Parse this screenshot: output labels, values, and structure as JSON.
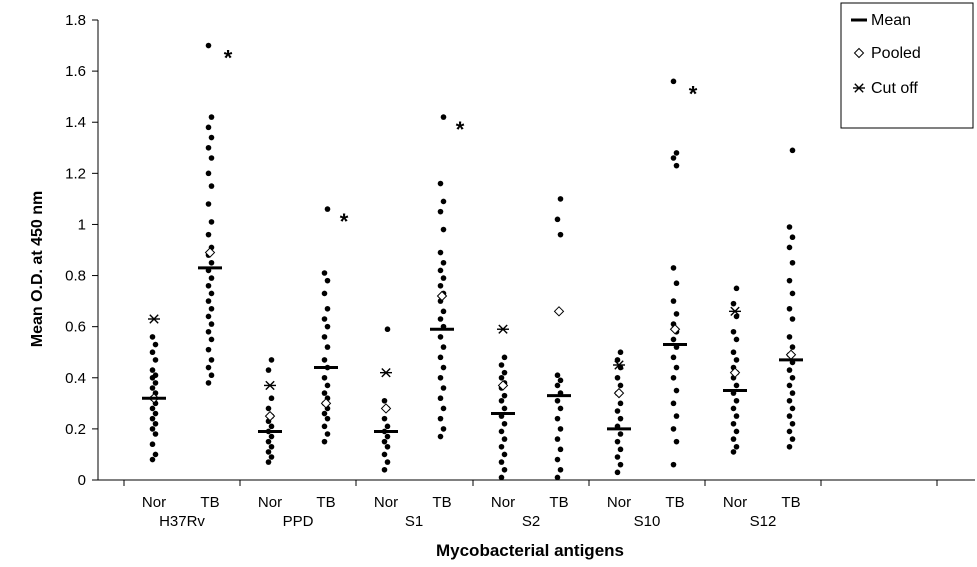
{
  "chart_data": {
    "type": "scatter",
    "title": "",
    "xlabel": "Mycobacterial antigens",
    "ylabel": "Mean O.D. at 450 nm",
    "ylim": [
      0,
      1.8
    ],
    "yticks": [
      "0",
      "0.2",
      "0.4",
      "0.6",
      "0.8",
      "1",
      "1.2",
      "1.4",
      "1.6",
      "1.8"
    ],
    "grid": false,
    "legend_position": "top-right",
    "legend": [
      {
        "symbol": "dash",
        "label": "Mean"
      },
      {
        "symbol": "diamond",
        "label": "Pooled"
      },
      {
        "symbol": "asterisk",
        "label": "Cut off"
      }
    ],
    "groups": [
      {
        "antigen": "H37Rv",
        "nor": {
          "label": "Nor",
          "mean": 0.32,
          "pooled": 0.32,
          "cutoff": 0.63,
          "values": [
            0.08,
            0.1,
            0.14,
            0.18,
            0.2,
            0.22,
            0.24,
            0.26,
            0.28,
            0.3,
            0.32,
            0.34,
            0.36,
            0.38,
            0.4,
            0.41,
            0.43,
            0.47,
            0.5,
            0.53,
            0.56
          ]
        },
        "tb": {
          "label": "TB",
          "mean": 0.83,
          "pooled": 0.89,
          "significant": true,
          "values": [
            0.38,
            0.41,
            0.44,
            0.47,
            0.51,
            0.55,
            0.58,
            0.61,
            0.64,
            0.67,
            0.7,
            0.73,
            0.76,
            0.79,
            0.82,
            0.85,
            0.88,
            0.91,
            0.96,
            1.01,
            1.08,
            1.15,
            1.2,
            1.26,
            1.3,
            1.34,
            1.38,
            1.42,
            1.7
          ]
        }
      },
      {
        "antigen": "PPD",
        "nor": {
          "label": "Nor",
          "mean": 0.19,
          "pooled": 0.25,
          "cutoff": 0.37,
          "values": [
            0.07,
            0.09,
            0.11,
            0.13,
            0.15,
            0.17,
            0.19,
            0.21,
            0.23,
            0.25,
            0.28,
            0.32,
            0.43,
            0.47
          ]
        },
        "tb": {
          "label": "TB",
          "mean": 0.44,
          "pooled": 0.3,
          "significant": true,
          "values": [
            0.15,
            0.18,
            0.21,
            0.24,
            0.26,
            0.28,
            0.3,
            0.32,
            0.34,
            0.37,
            0.4,
            0.44,
            0.47,
            0.52,
            0.56,
            0.6,
            0.63,
            0.67,
            0.73,
            0.78,
            0.81,
            1.06
          ]
        }
      },
      {
        "antigen": "S1",
        "nor": {
          "label": "Nor",
          "mean": 0.19,
          "pooled": 0.28,
          "cutoff": 0.42,
          "values": [
            0.04,
            0.07,
            0.1,
            0.13,
            0.15,
            0.17,
            0.19,
            0.21,
            0.24,
            0.28,
            0.31,
            0.59
          ]
        },
        "tb": {
          "label": "TB",
          "mean": 0.59,
          "pooled": 0.72,
          "significant": true,
          "values": [
            0.17,
            0.2,
            0.24,
            0.28,
            0.32,
            0.36,
            0.4,
            0.44,
            0.48,
            0.52,
            0.56,
            0.6,
            0.63,
            0.66,
            0.7,
            0.73,
            0.76,
            0.79,
            0.82,
            0.85,
            0.89,
            0.98,
            1.05,
            1.09,
            1.16,
            1.42
          ]
        }
      },
      {
        "antigen": "S2",
        "nor": {
          "label": "Nor",
          "mean": 0.26,
          "pooled": 0.37,
          "cutoff": 0.59,
          "values": [
            0.01,
            0.04,
            0.07,
            0.1,
            0.13,
            0.16,
            0.19,
            0.22,
            0.25,
            0.28,
            0.31,
            0.33,
            0.36,
            0.38,
            0.4,
            0.42,
            0.45,
            0.48
          ]
        },
        "tb": {
          "label": "TB",
          "mean": 0.33,
          "pooled": 0.66,
          "significant": false,
          "values": [
            0.01,
            0.04,
            0.08,
            0.12,
            0.16,
            0.2,
            0.24,
            0.28,
            0.31,
            0.34,
            0.37,
            0.39,
            0.41,
            0.96,
            1.02,
            1.1
          ]
        }
      },
      {
        "antigen": "S10",
        "nor": {
          "label": "Nor",
          "mean": 0.2,
          "pooled": 0.34,
          "cutoff": 0.45,
          "values": [
            0.03,
            0.06,
            0.09,
            0.12,
            0.15,
            0.18,
            0.21,
            0.24,
            0.27,
            0.3,
            0.34,
            0.37,
            0.4,
            0.44,
            0.47,
            0.5
          ]
        },
        "tb": {
          "label": "TB",
          "mean": 0.53,
          "pooled": 0.59,
          "significant": true,
          "values": [
            0.06,
            0.15,
            0.2,
            0.25,
            0.3,
            0.35,
            0.4,
            0.44,
            0.48,
            0.52,
            0.55,
            0.58,
            0.61,
            0.65,
            0.7,
            0.77,
            0.83,
            1.23,
            1.26,
            1.28,
            1.56
          ]
        }
      },
      {
        "antigen": "S12",
        "nor": {
          "label": "Nor",
          "mean": 0.35,
          "pooled": 0.42,
          "cutoff": 0.66,
          "values": [
            0.11,
            0.13,
            0.16,
            0.19,
            0.22,
            0.25,
            0.28,
            0.31,
            0.34,
            0.37,
            0.4,
            0.42,
            0.44,
            0.47,
            0.5,
            0.55,
            0.58,
            0.64,
            0.69,
            0.75
          ]
        },
        "tb": {
          "label": "TB",
          "mean": 0.47,
          "pooled": 0.49,
          "significant": false,
          "values": [
            0.13,
            0.16,
            0.19,
            0.22,
            0.25,
            0.28,
            0.31,
            0.34,
            0.37,
            0.4,
            0.43,
            0.46,
            0.49,
            0.52,
            0.56,
            0.63,
            0.67,
            0.73,
            0.78,
            0.85,
            0.91,
            0.95,
            0.99,
            1.29
          ]
        }
      }
    ],
    "significance_marker": "*"
  }
}
